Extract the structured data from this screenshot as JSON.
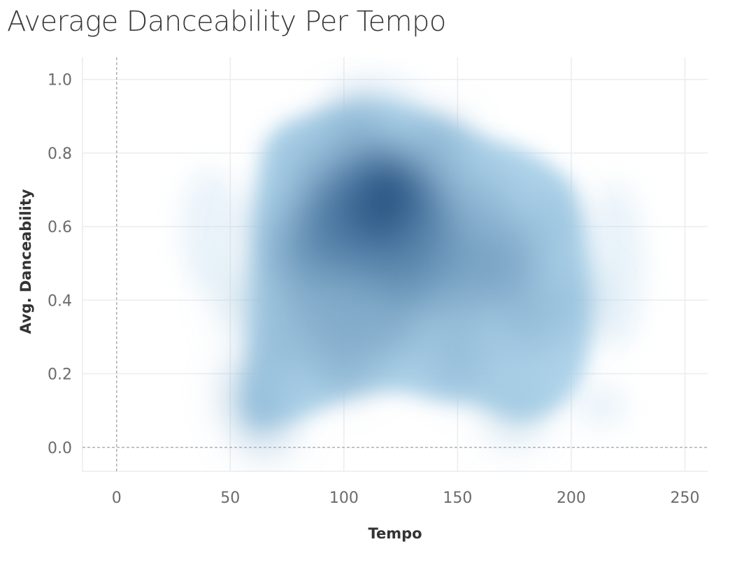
{
  "chart_data": {
    "type": "heatmap",
    "title": "Average Danceability Per Tempo",
    "xlabel": "Tempo",
    "ylabel": "Avg. Danceability",
    "xlim": [
      -15,
      260
    ],
    "ylim": [
      -0.065,
      1.06
    ],
    "x_ticks": [
      0,
      50,
      100,
      150,
      200,
      250
    ],
    "y_ticks": [
      0.0,
      0.2,
      0.4,
      0.6,
      0.8,
      1.0
    ],
    "x_tick_labels": [
      "0",
      "50",
      "100",
      "150",
      "200",
      "250"
    ],
    "y_tick_labels": [
      "0.0",
      "0.2",
      "0.4",
      "0.6",
      "0.8",
      "1.0"
    ],
    "grid": true,
    "zero_lines": true,
    "density": [
      {
        "tempo": 58,
        "danceability": 0.4,
        "intensity": 0.15
      },
      {
        "tempo": 60,
        "danceability": 0.15,
        "intensity": 0.25
      },
      {
        "tempo": 65,
        "danceability": 0.07,
        "intensity": 0.2
      },
      {
        "tempo": 70,
        "danceability": 0.6,
        "intensity": 0.2
      },
      {
        "tempo": 75,
        "danceability": 0.3,
        "intensity": 0.3
      },
      {
        "tempo": 80,
        "danceability": 0.5,
        "intensity": 0.45
      },
      {
        "tempo": 85,
        "danceability": 0.75,
        "intensity": 0.3
      },
      {
        "tempo": 90,
        "danceability": 0.58,
        "intensity": 0.6
      },
      {
        "tempo": 95,
        "danceability": 0.4,
        "intensity": 0.45
      },
      {
        "tempo": 100,
        "danceability": 0.65,
        "intensity": 0.75
      },
      {
        "tempo": 100,
        "danceability": 0.25,
        "intensity": 0.4
      },
      {
        "tempo": 105,
        "danceability": 0.85,
        "intensity": 0.35
      },
      {
        "tempo": 110,
        "danceability": 0.55,
        "intensity": 0.7
      },
      {
        "tempo": 115,
        "danceability": 0.7,
        "intensity": 0.8
      },
      {
        "tempo": 120,
        "danceability": 0.35,
        "intensity": 0.45
      },
      {
        "tempo": 125,
        "danceability": 0.65,
        "intensity": 1.0
      },
      {
        "tempo": 130,
        "danceability": 0.5,
        "intensity": 0.65
      },
      {
        "tempo": 140,
        "danceability": 0.58,
        "intensity": 0.6
      },
      {
        "tempo": 140,
        "danceability": 0.8,
        "intensity": 0.35
      },
      {
        "tempo": 150,
        "danceability": 0.45,
        "intensity": 0.45
      },
      {
        "tempo": 150,
        "danceability": 0.25,
        "intensity": 0.3
      },
      {
        "tempo": 160,
        "danceability": 0.65,
        "intensity": 0.35
      },
      {
        "tempo": 170,
        "danceability": 0.5,
        "intensity": 0.5
      },
      {
        "tempo": 180,
        "danceability": 0.35,
        "intensity": 0.3
      },
      {
        "tempo": 190,
        "danceability": 0.6,
        "intensity": 0.2
      },
      {
        "tempo": 200,
        "danceability": 0.4,
        "intensity": 0.2
      },
      {
        "tempo": 175,
        "danceability": 0.1,
        "intensity": 0.15
      }
    ],
    "colors": {
      "density_light": "#a9d0e8",
      "density_dark": "#1f4e80",
      "grid": "#ececef",
      "zero_line": "#aeb0b8"
    }
  }
}
